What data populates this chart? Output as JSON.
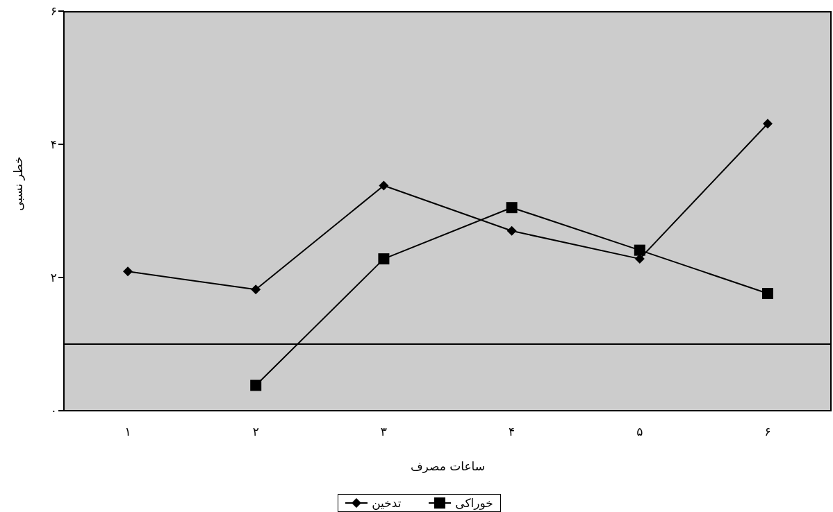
{
  "chart_data": {
    "type": "line",
    "xlabel": "ساعات مصرف",
    "ylabel": "خطر نسبی",
    "categories": [
      "۱",
      "۲",
      "۳",
      "۴",
      "۵",
      "۶"
    ],
    "series": [
      {
        "name": "تدخین",
        "color": "#000000",
        "marker": "diamond",
        "values": [
          2.09,
          1.82,
          3.38,
          2.7,
          2.28,
          4.31
        ]
      },
      {
        "name": "خوراکی",
        "color": "#000000",
        "marker": "square",
        "values": [
          null,
          0.38,
          2.28,
          3.05,
          2.41,
          1.76
        ]
      }
    ],
    "ylim": [
      0,
      6
    ],
    "yticks": [
      {
        "value": 0,
        "label": "۰"
      },
      {
        "value": 2,
        "label": "۲"
      },
      {
        "value": 4,
        "label": "۴"
      },
      {
        "value": 6,
        "label": "۶"
      }
    ],
    "ref_lines": [
      {
        "axis": "y",
        "value": 1,
        "label": null,
        "color": "#000000"
      }
    ],
    "grid": false,
    "legend": "bottom",
    "line_style": "solid"
  }
}
